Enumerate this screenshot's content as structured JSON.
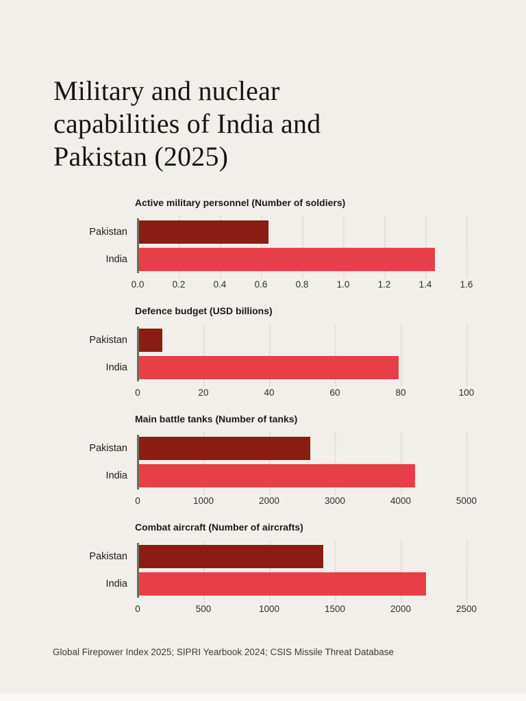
{
  "page": {
    "title": "Military and nuclear capabilities of India and Pakistan (2025)",
    "title_lines": [
      "Military and nuclear",
      "capabilities of India and",
      "Pakistan (2025)"
    ],
    "source": "Global Firepower Index 2025; SIPRI Yearbook 2024; CSIS Missile Threat Database"
  },
  "colors": {
    "background": "#f1efe9",
    "pakistan_bar": "#8b1b15",
    "india_bar": "#e83e48",
    "axis_line": "#6f6c66",
    "gridline": "#d8d4cb",
    "text": "#1a1a1a"
  },
  "chart_data": [
    {
      "type": "bar",
      "orientation": "horizontal",
      "title": "Active military personnel (Number of soldiers)",
      "categories": [
        "Pakistan",
        "India"
      ],
      "values": [
        0.63,
        1.44
      ],
      "bar_colors": [
        "#8b1b15",
        "#e83e48"
      ],
      "xlabel": "",
      "ylabel": "",
      "xlim": [
        0,
        1.6
      ],
      "ticks": [
        0.0,
        0.2,
        0.4,
        0.6,
        0.8,
        1.0,
        1.2,
        1.4,
        1.6
      ],
      "tick_labels": [
        "0.0",
        "0.2",
        "0.4",
        "0.6",
        "0.8",
        "1.0",
        "1.2",
        "1.4",
        "1.6"
      ],
      "grid": "vertical-dotted",
      "legend": "none"
    },
    {
      "type": "bar",
      "orientation": "horizontal",
      "title": "Defence budget (USD billions)",
      "categories": [
        "Pakistan",
        "India"
      ],
      "values": [
        7,
        79
      ],
      "bar_colors": [
        "#8b1b15",
        "#e83e48"
      ],
      "xlabel": "",
      "ylabel": "",
      "xlim": [
        0,
        100
      ],
      "ticks": [
        0,
        20,
        40,
        60,
        80,
        100
      ],
      "tick_labels": [
        "0",
        "20",
        "40",
        "60",
        "80",
        "100"
      ],
      "grid": "vertical-dotted",
      "legend": "none"
    },
    {
      "type": "bar",
      "orientation": "horizontal",
      "title": "Main battle tanks (Number of tanks)",
      "categories": [
        "Pakistan",
        "India"
      ],
      "values": [
        2600,
        4200
      ],
      "bar_colors": [
        "#8b1b15",
        "#e83e48"
      ],
      "xlabel": "",
      "ylabel": "",
      "xlim": [
        0,
        5000
      ],
      "ticks": [
        0,
        1000,
        2000,
        3000,
        4000,
        5000
      ],
      "tick_labels": [
        "0",
        "1000",
        "2000",
        "3000",
        "4000",
        "5000"
      ],
      "grid": "vertical-dotted",
      "legend": "none"
    },
    {
      "type": "bar",
      "orientation": "horizontal",
      "title": "Combat aircraft (Number of aircrafts)",
      "categories": [
        "Pakistan",
        "India"
      ],
      "values": [
        1400,
        2180
      ],
      "bar_colors": [
        "#8b1b15",
        "#e83e48"
      ],
      "xlabel": "",
      "ylabel": "",
      "xlim": [
        0,
        2500
      ],
      "ticks": [
        0,
        500,
        1000,
        1500,
        2000,
        2500
      ],
      "tick_labels": [
        "0",
        "500",
        "1000",
        "1500",
        "2000",
        "2500"
      ],
      "grid": "vertical-dotted",
      "legend": "none"
    }
  ]
}
